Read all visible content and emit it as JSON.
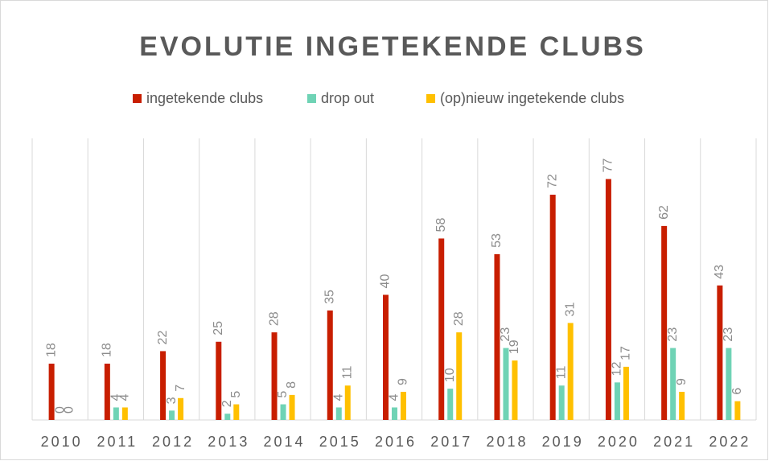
{
  "chart_data": {
    "type": "bar",
    "title": "EVOLUTIE INGETEKENDE CLUBS",
    "categories": [
      "2010",
      "2011",
      "2012",
      "2013",
      "2014",
      "2015",
      "2016",
      "2017",
      "2018",
      "2019",
      "2020",
      "2021",
      "2022"
    ],
    "series": [
      {
        "name": "ingetekende clubs",
        "color": "#c81e00",
        "values": [
          18,
          18,
          22,
          25,
          28,
          35,
          40,
          58,
          53,
          72,
          77,
          62,
          43
        ]
      },
      {
        "name": "drop out",
        "color": "#6fd3b5",
        "values": [
          0,
          4,
          3,
          2,
          5,
          4,
          4,
          10,
          23,
          11,
          12,
          23,
          23
        ]
      },
      {
        "name": "(op)nieuw ingetekende clubs",
        "color": "#ffc000",
        "values": [
          0,
          4,
          7,
          5,
          8,
          11,
          9,
          28,
          19,
          31,
          17,
          9,
          6
        ]
      }
    ],
    "ylim": [
      0,
      90
    ],
    "legend": "top",
    "grid": true
  }
}
